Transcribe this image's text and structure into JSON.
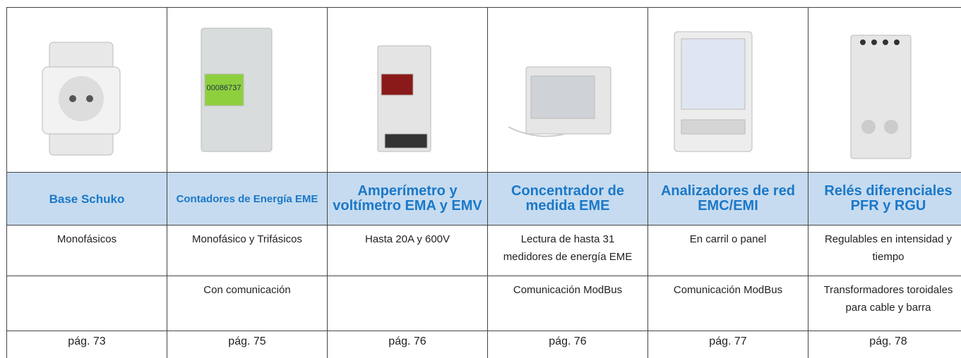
{
  "products": [
    {
      "name": "Base Schuko",
      "features": [
        "Monofásicos"
      ],
      "page": "pág. 73"
    },
    {
      "name": "Contadores de Energía EME",
      "features": [
        "Monofásico y Trifásicos",
        "Con comunicación"
      ],
      "page": "pág. 75"
    },
    {
      "name": "Amperímetro y voltímetro EMA y EMV",
      "features": [
        "Hasta 20A y 600V"
      ],
      "page": "pág. 76"
    },
    {
      "name": "Concentrador de medida EME",
      "features": [
        "Lectura de hasta 31 medidores de energía EME",
        "Comunicación ModBus"
      ],
      "page": "pág. 76"
    },
    {
      "name": "Analizadores de red EMC/EMI",
      "features": [
        "En carril o panel",
        "Comunicación ModBus"
      ],
      "page": "pág. 77"
    },
    {
      "name": "Relés diferenciales PFR y RGU",
      "features": [
        "Regulables en intensidad y tiempo",
        "Transformadores toroidales para cable y barra"
      ],
      "page": "pág. 78"
    }
  ]
}
